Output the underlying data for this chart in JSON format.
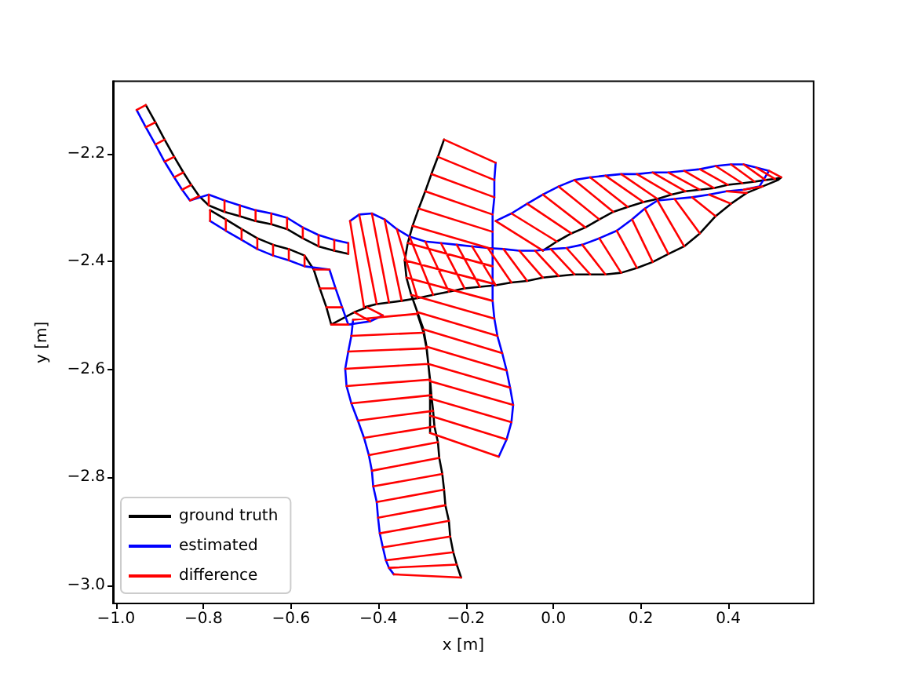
{
  "chart_data": {
    "type": "line",
    "xlabel": "x [m]",
    "ylabel": "y [m]",
    "xlim": [
      -1.007,
      0.595
    ],
    "ylim": [
      -3.034,
      -2.066
    ],
    "xticks": [
      {
        "value": -1.0,
        "label": "−1.0"
      },
      {
        "value": -0.8,
        "label": "−0.8"
      },
      {
        "value": -0.6,
        "label": "−0.6"
      },
      {
        "value": -0.4,
        "label": "−0.4"
      },
      {
        "value": -0.2,
        "label": "−0.2"
      },
      {
        "value": 0.0,
        "label": "0.0"
      },
      0.2,
      0.4
    ],
    "yticks": [
      {
        "value": -3.0,
        "label": "−3.0"
      },
      {
        "value": -2.8,
        "label": "−2.8"
      },
      {
        "value": -2.6,
        "label": "−2.6"
      },
      {
        "value": -2.4,
        "label": "−2.4"
      },
      {
        "value": -2.2,
        "label": "−2.2"
      }
    ],
    "grid": false,
    "legend": "bottom left",
    "marker": "none",
    "line_style": "solid",
    "series": [
      {
        "name": "ground truth",
        "color": "#000000",
        "x": [
          -0.932,
          -0.91,
          -0.889,
          -0.867,
          -0.846,
          -0.828,
          -0.81,
          -0.788,
          -0.752,
          -0.717,
          -0.681,
          -0.645,
          -0.609,
          -0.573,
          -0.537,
          -0.501,
          -0.469,
          null,
          -0.785,
          -0.749,
          -0.713,
          -0.677,
          -0.641,
          -0.605,
          -0.569,
          -0.548,
          -0.534,
          -0.519,
          -0.508,
          -0.455,
          -0.426,
          null,
          -0.25,
          -0.264,
          -0.279,
          -0.293,
          -0.308,
          -0.322,
          -0.333,
          -0.34,
          -0.336,
          -0.325,
          -0.311,
          -0.297,
          -0.29,
          -0.286,
          -0.282,
          -0.282,
          -0.282,
          -0.282,
          null,
          -0.024,
          0.008,
          0.041,
          0.073,
          0.105,
          0.137,
          0.17,
          0.206,
          0.238,
          0.27,
          0.302,
          0.335,
          0.367,
          0.399,
          0.432,
          0.46,
          0.485,
          0.507,
          0.521,
          0.514,
          0.478,
          0.442,
          0.406,
          0.371,
          0.335,
          0.299,
          0.263,
          0.227,
          0.191,
          0.155,
          0.119,
          0.084,
          0.048,
          0.012,
          -0.024,
          -0.06,
          -0.096,
          -0.132,
          -0.168,
          -0.203,
          -0.239,
          -0.275,
          -0.311,
          -0.347,
          -0.376,
          -0.404,
          -0.433,
          null,
          -0.311,
          -0.297,
          -0.29,
          -0.286,
          -0.282,
          -0.279,
          -0.275,
          -0.272,
          -0.264,
          -0.261,
          -0.254,
          -0.25,
          -0.247,
          -0.239,
          -0.236,
          -0.229,
          -0.221,
          -0.211
        ],
        "values": [
          -2.11,
          -2.142,
          -2.174,
          -2.206,
          -2.235,
          -2.258,
          -2.279,
          -2.296,
          -2.308,
          -2.316,
          -2.325,
          -2.331,
          -2.34,
          -2.357,
          -2.372,
          -2.38,
          -2.386,
          null,
          -2.305,
          -2.322,
          -2.34,
          -2.357,
          -2.369,
          -2.377,
          -2.389,
          -2.415,
          -2.45,
          -2.485,
          -2.517,
          -2.494,
          -2.485,
          null,
          -2.174,
          -2.206,
          -2.238,
          -2.27,
          -2.302,
          -2.334,
          -2.366,
          -2.398,
          -2.43,
          -2.462,
          -2.494,
          -2.526,
          -2.558,
          -2.59,
          -2.622,
          -2.654,
          -2.686,
          -2.718,
          null,
          -2.38,
          -2.363,
          -2.348,
          -2.337,
          -2.322,
          -2.308,
          -2.299,
          -2.29,
          -2.284,
          -2.276,
          -2.27,
          -2.267,
          -2.264,
          -2.258,
          -2.255,
          -2.252,
          -2.249,
          -2.247,
          -2.244,
          -2.249,
          -2.261,
          -2.273,
          -2.293,
          -2.316,
          -2.348,
          -2.372,
          -2.386,
          -2.401,
          -2.412,
          -2.421,
          -2.424,
          -2.424,
          -2.424,
          -2.427,
          -2.43,
          -2.436,
          -2.439,
          -2.444,
          -2.447,
          -2.45,
          -2.456,
          -2.462,
          -2.468,
          -2.473,
          -2.476,
          -2.479,
          -2.485,
          null,
          -2.497,
          -2.532,
          -2.561,
          -2.59,
          -2.619,
          -2.648,
          -2.677,
          -2.706,
          -2.735,
          -2.764,
          -2.794,
          -2.823,
          -2.852,
          -2.881,
          -2.91,
          -2.939,
          -2.962,
          -2.986
        ]
      },
      {
        "name": "estimated",
        "color": "#0000ff",
        "x": [
          -0.953,
          -0.932,
          -0.91,
          -0.889,
          -0.867,
          -0.849,
          -0.831,
          -0.788,
          -0.752,
          -0.717,
          -0.681,
          -0.645,
          -0.609,
          -0.573,
          -0.537,
          -0.501,
          -0.469,
          null,
          -0.785,
          -0.749,
          -0.713,
          -0.677,
          -0.641,
          -0.605,
          -0.569,
          -0.512,
          -0.498,
          -0.483,
          -0.469,
          -0.419,
          -0.39,
          null,
          -0.132,
          -0.135,
          -0.135,
          -0.139,
          -0.139,
          -0.139,
          -0.139,
          -0.139,
          -0.139,
          -0.135,
          -0.128,
          -0.117,
          -0.107,
          -0.099,
          -0.092,
          -0.096,
          -0.107,
          -0.125,
          null,
          -0.132,
          -0.096,
          -0.06,
          -0.024,
          0.012,
          0.048,
          0.084,
          0.119,
          0.155,
          0.191,
          0.227,
          0.263,
          0.299,
          0.335,
          0.371,
          0.406,
          0.435,
          0.464,
          0.493,
          0.471,
          0.435,
          0.396,
          0.356,
          0.317,
          0.277,
          0.238,
          0.209,
          0.18,
          0.145,
          0.105,
          0.066,
          0.03,
          -0.006,
          -0.042,
          -0.078,
          -0.114,
          -0.15,
          -0.186,
          -0.221,
          -0.257,
          -0.293,
          -0.329,
          -0.358,
          -0.386,
          -0.415,
          -0.444,
          -0.465,
          null,
          -0.458,
          -0.462,
          -0.469,
          -0.476,
          -0.473,
          -0.462,
          -0.447,
          -0.433,
          -0.422,
          -0.415,
          -0.412,
          -0.404,
          -0.401,
          -0.397,
          -0.39,
          -0.383,
          -0.376,
          -0.365
        ],
        "values": [
          -2.119,
          -2.151,
          -2.183,
          -2.215,
          -2.244,
          -2.267,
          -2.287,
          -2.276,
          -2.287,
          -2.296,
          -2.305,
          -2.311,
          -2.319,
          -2.337,
          -2.351,
          -2.36,
          -2.366,
          null,
          -2.325,
          -2.343,
          -2.36,
          -2.377,
          -2.389,
          -2.398,
          -2.409,
          -2.415,
          -2.45,
          -2.485,
          -2.517,
          -2.511,
          -2.5,
          null,
          -2.217,
          -2.249,
          -2.281,
          -2.313,
          -2.345,
          -2.377,
          -2.409,
          -2.441,
          -2.473,
          -2.506,
          -2.538,
          -2.57,
          -2.602,
          -2.634,
          -2.666,
          -2.698,
          -2.73,
          -2.762,
          null,
          -2.325,
          -2.311,
          -2.293,
          -2.276,
          -2.261,
          -2.249,
          -2.244,
          -2.241,
          -2.238,
          -2.238,
          -2.235,
          -2.235,
          -2.232,
          -2.229,
          -2.223,
          -2.22,
          -2.22,
          -2.226,
          -2.232,
          -2.261,
          -2.267,
          -2.27,
          -2.276,
          -2.281,
          -2.284,
          -2.287,
          -2.302,
          -2.322,
          -2.343,
          -2.357,
          -2.369,
          -2.375,
          -2.377,
          -2.38,
          -2.38,
          -2.377,
          -2.375,
          -2.372,
          -2.369,
          -2.366,
          -2.363,
          -2.354,
          -2.34,
          -2.322,
          -2.311,
          -2.313,
          -2.325,
          null,
          -2.508,
          -2.538,
          -2.567,
          -2.599,
          -2.631,
          -2.663,
          -2.695,
          -2.727,
          -2.759,
          -2.788,
          -2.817,
          -2.846,
          -2.875,
          -2.904,
          -2.93,
          -2.954,
          -2.968,
          -2.98
        ]
      },
      {
        "name": "difference",
        "color": "#ff0000",
        "x": [
          -0.932,
          -0.953,
          null,
          -0.91,
          -0.932,
          null,
          -0.889,
          -0.91,
          null,
          -0.867,
          -0.889,
          null,
          -0.846,
          -0.867,
          null,
          -0.828,
          -0.849,
          null,
          -0.81,
          -0.831,
          null,
          -0.788,
          -0.788,
          null,
          -0.752,
          -0.752,
          null,
          -0.717,
          -0.717,
          null,
          -0.681,
          -0.681,
          null,
          -0.645,
          -0.645,
          null,
          -0.609,
          -0.609,
          null,
          -0.573,
          -0.573,
          null,
          -0.537,
          -0.537,
          null,
          -0.501,
          -0.501,
          null,
          -0.469,
          -0.469,
          null,
          -0.785,
          -0.785,
          null,
          -0.749,
          -0.749,
          null,
          -0.713,
          -0.713,
          null,
          -0.677,
          -0.677,
          null,
          -0.641,
          -0.641,
          null,
          -0.605,
          -0.605,
          null,
          -0.569,
          -0.569,
          null,
          -0.548,
          -0.512,
          null,
          -0.534,
          -0.498,
          null,
          -0.519,
          -0.483,
          null,
          -0.508,
          -0.469,
          null,
          -0.455,
          -0.419,
          null,
          -0.426,
          -0.39,
          null,
          -0.25,
          -0.132,
          null,
          -0.264,
          -0.135,
          null,
          -0.279,
          -0.135,
          null,
          -0.293,
          -0.139,
          null,
          -0.308,
          -0.139,
          null,
          -0.322,
          -0.139,
          null,
          -0.333,
          -0.139,
          null,
          -0.34,
          -0.139,
          null,
          -0.336,
          -0.139,
          null,
          -0.325,
          -0.135,
          null,
          -0.311,
          -0.128,
          null,
          -0.297,
          -0.117,
          null,
          -0.29,
          -0.107,
          null,
          -0.286,
          -0.099,
          null,
          -0.282,
          -0.092,
          null,
          -0.282,
          -0.096,
          null,
          -0.282,
          -0.107,
          null,
          -0.282,
          -0.125,
          null,
          -0.024,
          -0.132,
          null,
          0.008,
          -0.096,
          null,
          0.041,
          -0.06,
          null,
          0.073,
          -0.024,
          null,
          0.105,
          0.012,
          null,
          0.137,
          0.048,
          null,
          0.17,
          0.084,
          null,
          0.206,
          0.119,
          null,
          0.238,
          0.155,
          null,
          0.27,
          0.191,
          null,
          0.302,
          0.227,
          null,
          0.335,
          0.263,
          null,
          0.367,
          0.299,
          null,
          0.399,
          0.335,
          null,
          0.432,
          0.371,
          null,
          0.46,
          0.406,
          null,
          0.485,
          0.435,
          null,
          0.507,
          0.464,
          null,
          0.521,
          0.493,
          null,
          0.478,
          0.435,
          null,
          0.442,
          0.396,
          null,
          0.406,
          0.356,
          null,
          0.371,
          0.317,
          null,
          0.335,
          0.277,
          null,
          0.299,
          0.238,
          null,
          0.263,
          0.209,
          null,
          0.227,
          0.18,
          null,
          0.191,
          0.145,
          null,
          0.155,
          0.105,
          null,
          0.119,
          0.066,
          null,
          0.084,
          0.03,
          null,
          0.048,
          -0.006,
          null,
          0.012,
          -0.042,
          null,
          -0.024,
          -0.078,
          null,
          -0.06,
          -0.114,
          null,
          -0.096,
          -0.15,
          null,
          -0.132,
          -0.186,
          null,
          -0.168,
          -0.221,
          null,
          -0.203,
          -0.257,
          null,
          -0.239,
          -0.293,
          null,
          -0.275,
          -0.329,
          null,
          -0.311,
          -0.358,
          null,
          -0.347,
          -0.386,
          null,
          -0.376,
          -0.415,
          null,
          -0.404,
          -0.444,
          null,
          -0.433,
          -0.465,
          null,
          -0.311,
          -0.458,
          null,
          -0.297,
          -0.462,
          null,
          -0.29,
          -0.469,
          null,
          -0.286,
          -0.476,
          null,
          -0.282,
          -0.473,
          null,
          -0.279,
          -0.462,
          null,
          -0.275,
          -0.447,
          null,
          -0.272,
          -0.433,
          null,
          -0.264,
          -0.422,
          null,
          -0.261,
          -0.415,
          null,
          -0.254,
          -0.412,
          null,
          -0.25,
          -0.404,
          null,
          -0.247,
          -0.401,
          null,
          -0.239,
          -0.397,
          null,
          -0.236,
          -0.39,
          null,
          -0.229,
          -0.383,
          null,
          -0.221,
          -0.376,
          null,
          -0.211,
          -0.365
        ],
        "values": [
          -2.11,
          -2.119,
          null,
          -2.142,
          -2.151,
          null,
          -2.174,
          -2.183,
          null,
          -2.206,
          -2.215,
          null,
          -2.235,
          -2.244,
          null,
          -2.258,
          -2.267,
          null,
          -2.279,
          -2.287,
          null,
          -2.296,
          -2.276,
          null,
          -2.308,
          -2.287,
          null,
          -2.316,
          -2.296,
          null,
          -2.325,
          -2.305,
          null,
          -2.331,
          -2.311,
          null,
          -2.34,
          -2.319,
          null,
          -2.357,
          -2.337,
          null,
          -2.372,
          -2.351,
          null,
          -2.38,
          -2.36,
          null,
          -2.386,
          -2.366,
          null,
          -2.305,
          -2.325,
          null,
          -2.322,
          -2.343,
          null,
          -2.34,
          -2.36,
          null,
          -2.357,
          -2.377,
          null,
          -2.369,
          -2.389,
          null,
          -2.377,
          -2.398,
          null,
          -2.389,
          -2.409,
          null,
          -2.415,
          -2.415,
          null,
          -2.45,
          -2.45,
          null,
          -2.485,
          -2.485,
          null,
          -2.517,
          -2.517,
          null,
          -2.494,
          -2.511,
          null,
          -2.485,
          -2.5,
          null,
          -2.174,
          -2.217,
          null,
          -2.206,
          -2.249,
          null,
          -2.238,
          -2.281,
          null,
          -2.27,
          -2.313,
          null,
          -2.302,
          -2.345,
          null,
          -2.334,
          -2.377,
          null,
          -2.366,
          -2.409,
          null,
          -2.398,
          -2.441,
          null,
          -2.43,
          -2.473,
          null,
          -2.462,
          -2.506,
          null,
          -2.494,
          -2.538,
          null,
          -2.526,
          -2.57,
          null,
          -2.558,
          -2.602,
          null,
          -2.59,
          -2.634,
          null,
          -2.622,
          -2.666,
          null,
          -2.654,
          -2.698,
          null,
          -2.686,
          -2.73,
          null,
          -2.718,
          -2.762,
          null,
          -2.38,
          -2.325,
          null,
          -2.363,
          -2.311,
          null,
          -2.348,
          -2.293,
          null,
          -2.337,
          -2.276,
          null,
          -2.322,
          -2.261,
          null,
          -2.308,
          -2.249,
          null,
          -2.299,
          -2.244,
          null,
          -2.29,
          -2.241,
          null,
          -2.284,
          -2.238,
          null,
          -2.276,
          -2.238,
          null,
          -2.27,
          -2.235,
          null,
          -2.267,
          -2.235,
          null,
          -2.264,
          -2.232,
          null,
          -2.258,
          -2.229,
          null,
          -2.255,
          -2.223,
          null,
          -2.252,
          -2.22,
          null,
          -2.249,
          -2.22,
          null,
          -2.247,
          -2.226,
          null,
          -2.244,
          -2.232,
          null,
          -2.261,
          -2.267,
          null,
          -2.273,
          -2.27,
          null,
          -2.293,
          -2.276,
          null,
          -2.316,
          -2.281,
          null,
          -2.348,
          -2.284,
          null,
          -2.372,
          -2.287,
          null,
          -2.386,
          -2.302,
          null,
          -2.401,
          -2.322,
          null,
          -2.412,
          -2.343,
          null,
          -2.421,
          -2.357,
          null,
          -2.424,
          -2.369,
          null,
          -2.424,
          -2.375,
          null,
          -2.424,
          -2.377,
          null,
          -2.427,
          -2.38,
          null,
          -2.43,
          -2.38,
          null,
          -2.436,
          -2.377,
          null,
          -2.439,
          -2.375,
          null,
          -2.444,
          -2.372,
          null,
          -2.447,
          -2.369,
          null,
          -2.45,
          -2.366,
          null,
          -2.456,
          -2.363,
          null,
          -2.462,
          -2.354,
          null,
          -2.468,
          -2.34,
          null,
          -2.473,
          -2.322,
          null,
          -2.476,
          -2.311,
          null,
          -2.479,
          -2.313,
          null,
          -2.485,
          -2.325,
          null,
          -2.497,
          -2.508,
          null,
          -2.532,
          -2.538,
          null,
          -2.561,
          -2.567,
          null,
          -2.59,
          -2.599,
          null,
          -2.619,
          -2.631,
          null,
          -2.648,
          -2.663,
          null,
          -2.677,
          -2.695,
          null,
          -2.706,
          -2.727,
          null,
          -2.735,
          -2.759,
          null,
          -2.764,
          -2.788,
          null,
          -2.794,
          -2.817,
          null,
          -2.823,
          -2.846,
          null,
          -2.852,
          -2.875,
          null,
          -2.881,
          -2.904,
          null,
          -2.91,
          -2.93,
          null,
          -2.939,
          -2.954,
          null,
          -2.962,
          -2.968,
          null,
          -2.986,
          -2.98
        ]
      }
    ]
  }
}
